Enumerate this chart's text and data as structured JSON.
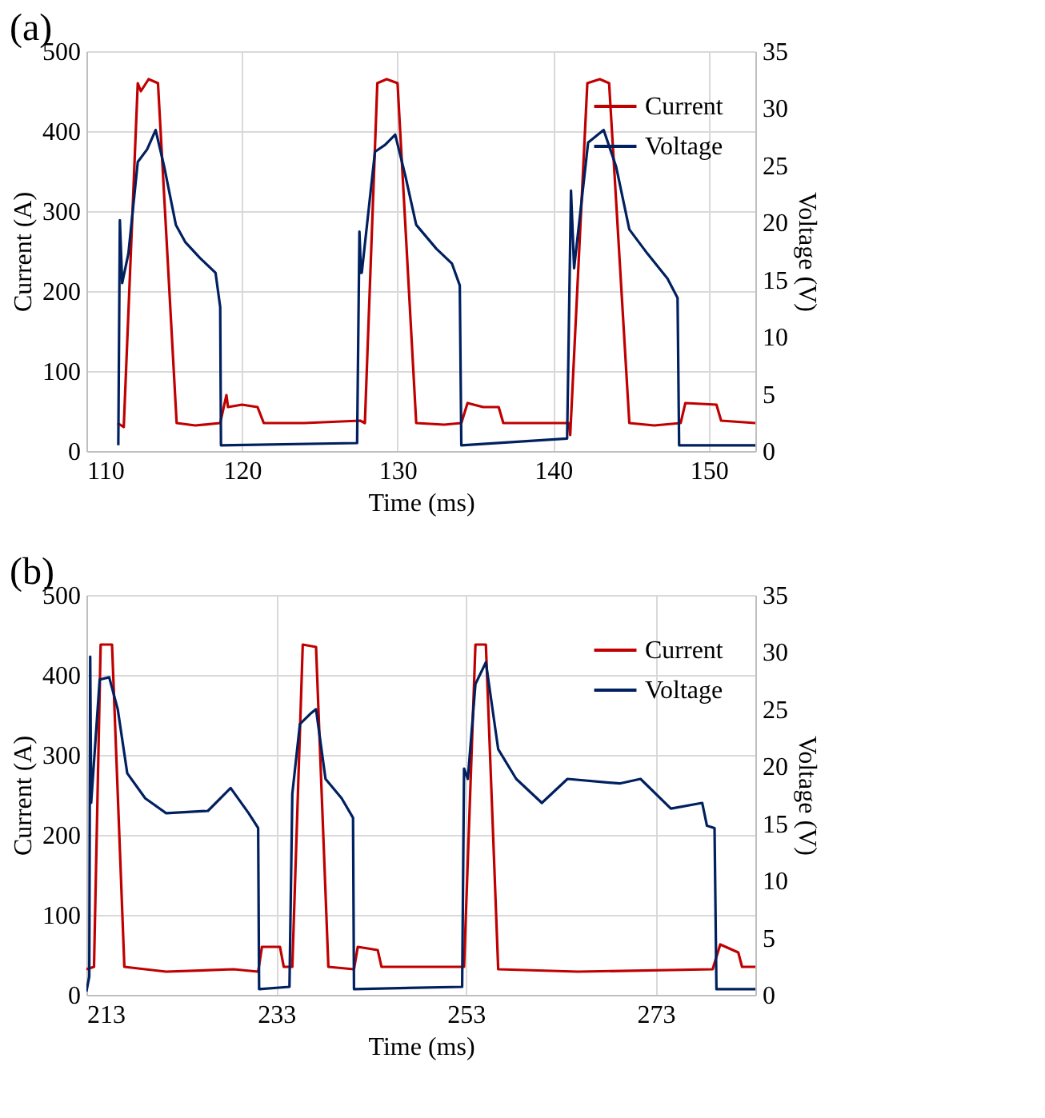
{
  "chart_data": [
    {
      "type": "line",
      "title": "(a)",
      "xlabel": "Time (ms)",
      "ylabel": "Current (A)",
      "y2label": "Voltage (V)",
      "xlim": [
        110,
        153
      ],
      "xticks": [
        110,
        120,
        130,
        140,
        150
      ],
      "ylim": [
        0,
        500
      ],
      "yticks": [
        0,
        100,
        200,
        300,
        400,
        500
      ],
      "y2lim": [
        0,
        35
      ],
      "y2ticks": [
        0,
        5,
        10,
        15,
        20,
        25,
        30,
        35
      ],
      "grid": true,
      "legend": "top right",
      "series": [
        {
          "name": "Current",
          "color": "#c00000",
          "x": [
            112.0,
            112.4,
            113.3,
            113.5,
            114.0,
            114.6,
            115.8,
            117.0,
            118.6,
            119.0,
            119.1,
            120.0,
            121.0,
            121.4,
            124.0,
            127.6,
            127.9,
            128.7,
            129.3,
            130.0,
            131.2,
            133.0,
            134.1,
            134.5,
            135.5,
            136.5,
            136.8,
            139.0,
            141.0,
            141.1,
            142.2,
            143.0,
            143.6,
            144.9,
            146.5,
            148.2,
            148.5,
            150.5,
            150.8,
            153.0
          ],
          "values": [
            35,
            30,
            460,
            450,
            465,
            460,
            35,
            32,
            35,
            70,
            55,
            58,
            55,
            35,
            35,
            38,
            35,
            460,
            465,
            460,
            35,
            33,
            35,
            60,
            55,
            55,
            35,
            35,
            35,
            20,
            460,
            465,
            460,
            35,
            32,
            35,
            60,
            58,
            38,
            35
          ]
        },
        {
          "name": "Voltage",
          "color": "#002060",
          "axis": "y2",
          "x": [
            112.05,
            112.15,
            112.3,
            112.7,
            113.3,
            113.9,
            114.45,
            115.0,
            115.75,
            116.35,
            117.3,
            118.3,
            118.6,
            118.65,
            127.4,
            127.55,
            127.65,
            127.7,
            128.55,
            129.2,
            129.85,
            130.5,
            131.2,
            132.5,
            133.5,
            134.0,
            134.1,
            140.9,
            141.15,
            141.35,
            142.25,
            143.25,
            144.05,
            144.9,
            146.05,
            147.35,
            148.0,
            148.1,
            153.0
          ],
          "values": [
            0.5,
            20.2,
            14.7,
            17.3,
            25.3,
            26.4,
            28.1,
            24.9,
            19.8,
            18.3,
            16.9,
            15.6,
            12.6,
            0.5,
            0.7,
            19.2,
            15.6,
            15.6,
            26.2,
            26.8,
            27.7,
            24.1,
            19.8,
            17.7,
            16.4,
            14.5,
            0.5,
            1.1,
            22.8,
            16.0,
            27.0,
            28.1,
            24.9,
            19.4,
            17.3,
            15.1,
            13.4,
            0.5,
            0.5
          ]
        }
      ]
    },
    {
      "type": "line",
      "title": "(b)",
      "xlabel": "Time (ms)",
      "ylabel": "Current (A)",
      "y2label": "Voltage (V)",
      "xlim": [
        213,
        283.5
      ],
      "xticks": [
        213,
        233,
        253,
        273
      ],
      "ylim": [
        0,
        500
      ],
      "yticks": [
        0,
        100,
        200,
        300,
        400,
        500
      ],
      "y2lim": [
        0,
        35
      ],
      "y2ticks": [
        0,
        5,
        10,
        15,
        20,
        25,
        30,
        35
      ],
      "grid": true,
      "legend": "top right",
      "series": [
        {
          "name": "Current",
          "color": "#c00000",
          "x": [
            213.0,
            213.8,
            214.5,
            215.7,
            217.0,
            221.4,
            228.5,
            231.1,
            231.5,
            233.4,
            233.8,
            234.7,
            235.8,
            237.2,
            238.5,
            241.2,
            241.6,
            243.7,
            244.1,
            252.8,
            254.0,
            255.1,
            256.4,
            264.8,
            279.0,
            279.8,
            281.7,
            282.1,
            283.5
          ],
          "values": [
            32,
            35,
            438,
            438,
            35,
            29,
            32,
            29,
            60,
            60,
            35,
            35,
            438,
            435,
            35,
            32,
            60,
            56,
            35,
            35,
            438,
            438,
            32,
            29,
            32,
            63,
            53,
            35,
            35
          ]
        },
        {
          "name": "Voltage",
          "color": "#002060",
          "axis": "y2",
          "x": [
            213.0,
            213.3,
            213.4,
            213.5,
            214.4,
            215.4,
            216.3,
            217.3,
            219.2,
            221.4,
            225.8,
            228.2,
            230.1,
            231.1,
            231.2,
            234.4,
            234.7,
            235.5,
            236.6,
            237.2,
            238.2,
            239.9,
            241.1,
            241.2,
            252.6,
            252.8,
            253.2,
            254.0,
            255.1,
            256.4,
            258.3,
            261.0,
            263.7,
            269.2,
            271.4,
            274.6,
            277.9,
            278.4,
            279.2,
            279.4,
            283.5
          ],
          "values": [
            0.3,
            1.6,
            29.6,
            16.8,
            27.6,
            27.8,
            25.0,
            19.4,
            17.2,
            15.9,
            16.1,
            18.1,
            15.9,
            14.6,
            0.5,
            0.7,
            17.6,
            23.7,
            24.6,
            25.0,
            18.9,
            17.2,
            15.5,
            0.5,
            0.7,
            19.8,
            18.9,
            27.2,
            29.1,
            21.5,
            18.9,
            16.8,
            18.9,
            18.5,
            18.9,
            16.3,
            16.8,
            14.8,
            14.6,
            0.5,
            0.5
          ]
        }
      ]
    }
  ]
}
